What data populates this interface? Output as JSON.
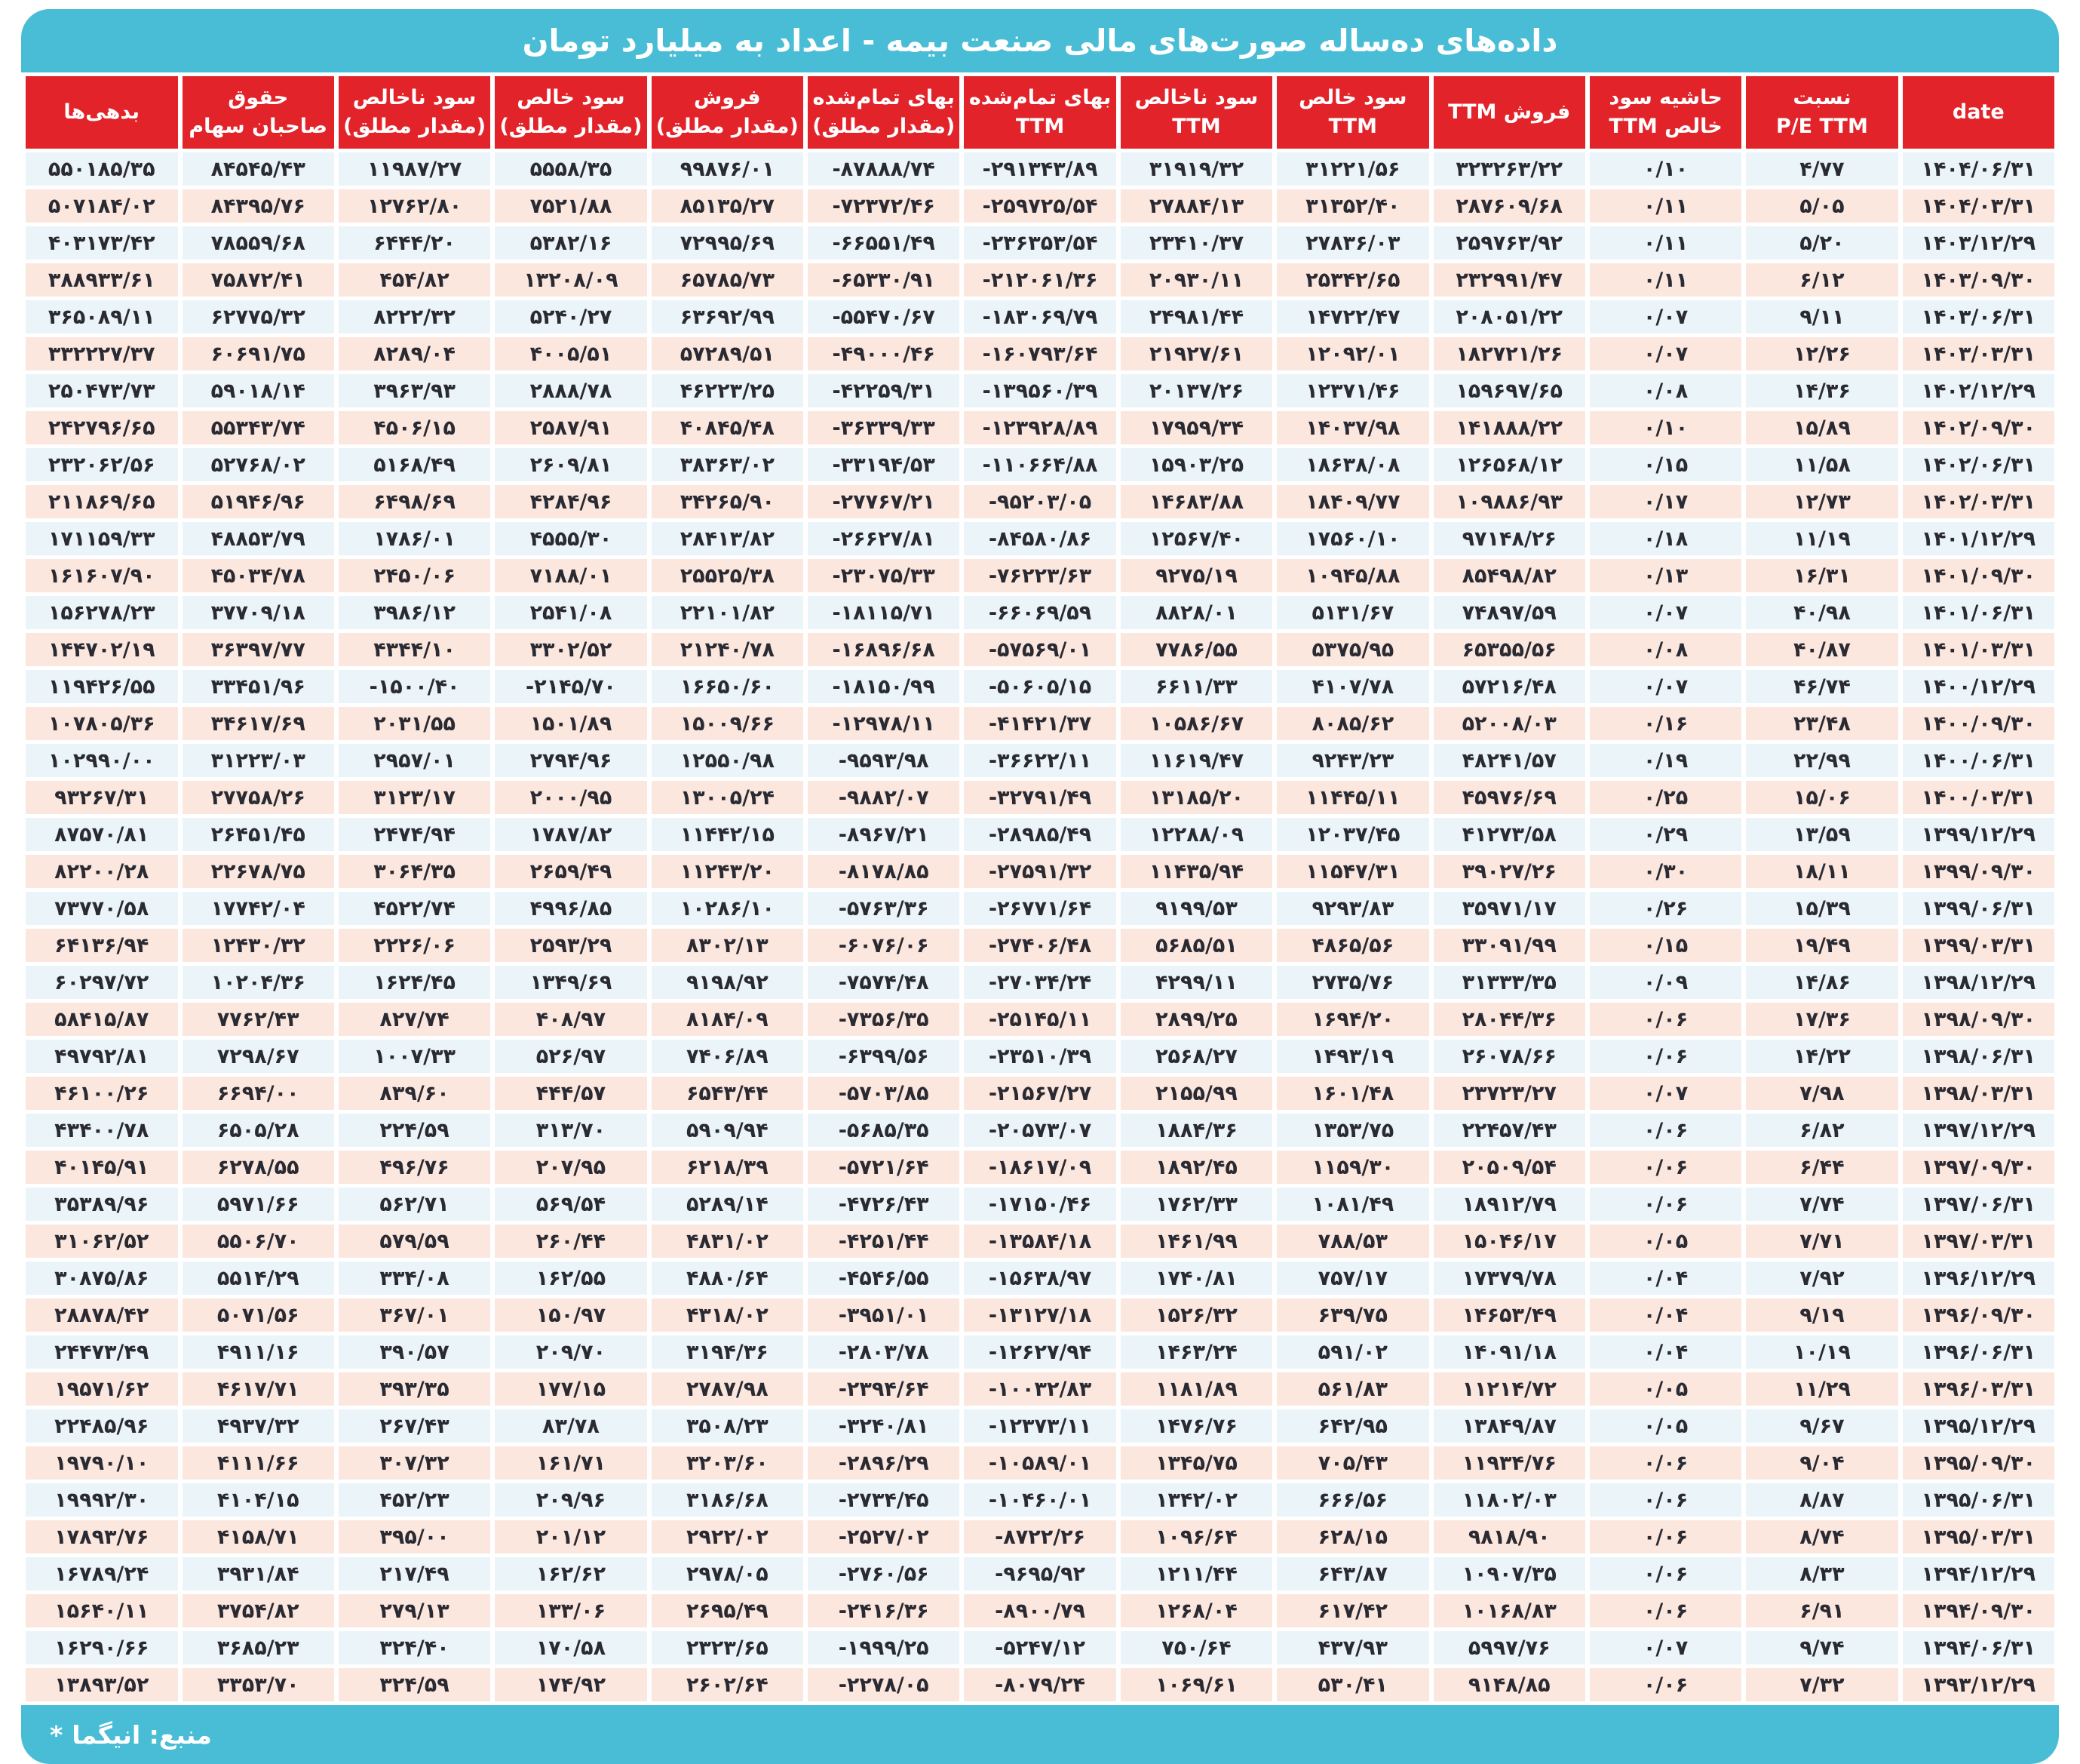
{
  "title": "داده‌های ده‌ساله صورت‌های مالی صنعت بیمه - اعداد به میلیارد تومان",
  "footer": {
    "footnote_star": "*",
    "source_note": "منبع: انیگما"
  },
  "colors": {
    "accent_cyan": "#49BDD5",
    "header_red": "#E3232A",
    "row_blue": "#EBF4F8",
    "row_peach": "#FBE7DE",
    "text_dark": "#2A2A33",
    "header_text": "#FFFFFF"
  },
  "chart_data": {
    "type": "table",
    "title": "داده‌های ده‌ساله صورت‌های مالی صنعت بیمه - اعداد به میلیارد تومان",
    "unit_note": "اعداد به میلیارد تومان",
    "layout": "rtl, first column (date) rendered rightmost, alternating row stripes",
    "columns": [
      [
        "date"
      ],
      [
        "نسبت",
        "P/E  TTM"
      ],
      [
        "حاشیه سود",
        "خالص TTM"
      ],
      [
        "فروش TTM"
      ],
      [
        "سود خالص",
        "TTM"
      ],
      [
        "سود ناخالص",
        "TTM"
      ],
      [
        "بهای تمام‌شده",
        "TTM"
      ],
      [
        "بهای تمام‌شده",
        "(مقدار مطلق)"
      ],
      [
        "فروش",
        "(مقدار مطلق)"
      ],
      [
        "سود خالص",
        "(مقدار مطلق)"
      ],
      [
        "سود ناخالص",
        "(مقدار مطلق)"
      ],
      [
        "حقوق",
        "صاحبان سهام"
      ],
      [
        "بدهی‌ها"
      ]
    ],
    "rows": [
      [
        "۱۴۰۴/۰۶/۳۱",
        "۴/۷۷",
        "۰/۱۰",
        "۳۲۳۲۶۳/۲۲",
        "۳۱۲۲۱/۵۶",
        "۳۱۹۱۹/۳۲",
        "-۲۹۱۳۴۳/۸۹",
        "-۸۷۸۸۸/۷۴",
        "۹۹۸۷۶/۰۱",
        "۵۵۵۸/۳۵",
        "۱۱۹۸۷/۲۷",
        "۸۴۵۴۵/۴۳",
        "۵۵۰۱۸۵/۳۵"
      ],
      [
        "۱۴۰۴/۰۳/۳۱",
        "۵/۰۵",
        "۰/۱۱",
        "۲۸۷۶۰۹/۶۸",
        "۳۱۳۵۲/۴۰",
        "۲۷۸۸۴/۱۳",
        "-۲۵۹۷۲۵/۵۴",
        "-۷۲۳۷۲/۴۶",
        "۸۵۱۳۵/۲۷",
        "۷۵۲۱/۸۸",
        "۱۲۷۶۲/۸۰",
        "۸۴۳۹۵/۷۶",
        "۵۰۷۱۸۴/۰۲"
      ],
      [
        "۱۴۰۳/۱۲/۲۹",
        "۵/۲۰",
        "۰/۱۱",
        "۲۵۹۷۶۳/۹۲",
        "۲۷۸۳۶/۰۳",
        "۲۳۴۱۰/۳۷",
        "-۲۳۶۳۵۳/۵۴",
        "-۶۶۵۵۱/۴۹",
        "۷۲۹۹۵/۶۹",
        "۵۳۸۲/۱۶",
        "۶۴۴۴/۲۰",
        "۷۸۵۵۹/۶۸",
        "۴۰۳۱۷۳/۴۲"
      ],
      [
        "۱۴۰۳/۰۹/۳۰",
        "۶/۱۲",
        "۰/۱۱",
        "۲۳۲۹۹۱/۴۷",
        "۲۵۳۴۲/۶۵",
        "۲۰۹۳۰/۱۱",
        "-۲۱۲۰۶۱/۳۶",
        "-۶۵۳۳۰/۹۱",
        "۶۵۷۸۵/۷۳",
        "۱۳۲۰۸/۰۹",
        "۴۵۴/۸۲",
        "۷۵۸۷۲/۴۱",
        "۳۸۸۹۳۳/۶۱"
      ],
      [
        "۱۴۰۳/۰۶/۳۱",
        "۹/۱۱",
        "۰/۰۷",
        "۲۰۸۰۵۱/۲۲",
        "۱۴۷۲۲/۴۷",
        "۲۴۹۸۱/۴۴",
        "-۱۸۳۰۶۹/۷۹",
        "-۵۵۴۷۰/۶۷",
        "۶۳۶۹۲/۹۹",
        "۵۲۴۰/۲۷",
        "۸۲۲۲/۳۲",
        "۶۲۷۷۵/۳۲",
        "۳۶۵۰۸۹/۱۱"
      ],
      [
        "۱۴۰۳/۰۳/۳۱",
        "۱۲/۲۶",
        "۰/۰۷",
        "۱۸۲۷۲۱/۲۶",
        "۱۲۰۹۲/۰۱",
        "۲۱۹۲۷/۶۱",
        "-۱۶۰۷۹۳/۶۴",
        "-۴۹۰۰۰/۴۶",
        "۵۷۲۸۹/۵۱",
        "۴۰۰۵/۵۱",
        "۸۲۸۹/۰۴",
        "۶۰۶۹۱/۷۵",
        "۳۳۲۲۲۷/۳۷"
      ],
      [
        "۱۴۰۲/۱۲/۲۹",
        "۱۴/۳۶",
        "۰/۰۸",
        "۱۵۹۶۹۷/۶۵",
        "۱۲۳۷۱/۴۶",
        "۲۰۱۳۷/۲۶",
        "-۱۳۹۵۶۰/۳۹",
        "-۴۲۲۵۹/۳۱",
        "۴۶۲۲۳/۲۵",
        "۲۸۸۸/۷۸",
        "۳۹۶۳/۹۳",
        "۵۹۰۱۸/۱۴",
        "۲۵۰۴۷۳/۷۳"
      ],
      [
        "۱۴۰۲/۰۹/۳۰",
        "۱۵/۸۹",
        "۰/۱۰",
        "۱۴۱۸۸۸/۲۲",
        "۱۴۰۳۷/۹۸",
        "۱۷۹۵۹/۳۴",
        "-۱۲۳۹۲۸/۸۹",
        "-۳۶۳۳۹/۳۳",
        "۴۰۸۴۵/۴۸",
        "۲۵۸۷/۹۱",
        "۴۵۰۶/۱۵",
        "۵۵۳۴۳/۷۴",
        "۲۴۲۷۹۶/۶۵"
      ],
      [
        "۱۴۰۲/۰۶/۳۱",
        "۱۱/۵۸",
        "۰/۱۵",
        "۱۲۶۵۶۸/۱۲",
        "۱۸۶۳۸/۰۸",
        "۱۵۹۰۳/۲۵",
        "-۱۱۰۶۶۴/۸۸",
        "-۳۳۱۹۴/۵۳",
        "۳۸۳۶۳/۰۲",
        "۲۶۰۹/۸۱",
        "۵۱۶۸/۴۹",
        "۵۲۷۶۸/۰۲",
        "۲۳۲۰۶۲/۵۶"
      ],
      [
        "۱۴۰۲/۰۳/۳۱",
        "۱۲/۷۳",
        "۰/۱۷",
        "۱۰۹۸۸۶/۹۳",
        "۱۸۴۰۹/۷۷",
        "۱۴۶۸۳/۸۸",
        "-۹۵۲۰۳/۰۵",
        "-۲۷۷۶۷/۲۱",
        "۳۴۲۶۵/۹۰",
        "۴۲۸۴/۹۶",
        "۶۴۹۸/۶۹",
        "۵۱۹۴۶/۹۶",
        "۲۱۱۸۶۹/۶۵"
      ],
      [
        "۱۴۰۱/۱۲/۲۹",
        "۱۱/۱۹",
        "۰/۱۸",
        "۹۷۱۴۸/۲۶",
        "۱۷۵۶۰/۱۰",
        "۱۲۵۶۷/۴۰",
        "-۸۴۵۸۰/۸۶",
        "-۲۶۶۲۷/۸۱",
        "۲۸۴۱۳/۸۲",
        "۴۵۵۵/۳۰",
        "۱۷۸۶/۰۱",
        "۴۸۸۵۳/۷۹",
        "۱۷۱۱۵۹/۳۳"
      ],
      [
        "۱۴۰۱/۰۹/۳۰",
        "۱۶/۳۱",
        "۰/۱۳",
        "۸۵۴۹۸/۸۲",
        "۱۰۹۴۵/۸۸",
        "۹۲۷۵/۱۹",
        "-۷۶۲۲۳/۶۳",
        "-۲۳۰۷۵/۳۳",
        "۲۵۵۲۵/۳۸",
        "۷۱۸۸/۰۱",
        "۲۴۵۰/۰۶",
        "۴۵۰۳۴/۷۸",
        "۱۶۱۶۰۷/۹۰"
      ],
      [
        "۱۴۰۱/۰۶/۳۱",
        "۴۰/۹۸",
        "۰/۰۷",
        "۷۴۸۹۷/۵۹",
        "۵۱۳۱/۶۷",
        "۸۸۲۸/۰۱",
        "-۶۶۰۶۹/۵۹",
        "-۱۸۱۱۵/۷۱",
        "۲۲۱۰۱/۸۲",
        "۲۵۴۱/۰۸",
        "۳۹۸۶/۱۲",
        "۳۷۷۰۹/۱۸",
        "۱۵۶۲۷۸/۲۳"
      ],
      [
        "۱۴۰۱/۰۳/۳۱",
        "۴۰/۸۷",
        "۰/۰۸",
        "۶۵۳۵۵/۵۶",
        "۵۳۷۵/۹۵",
        "۷۷۸۶/۵۵",
        "-۵۷۵۶۹/۰۱",
        "-۱۶۸۹۶/۶۸",
        "۲۱۲۴۰/۷۸",
        "۳۳۰۲/۵۲",
        "۴۳۴۴/۱۰",
        "۳۶۳۹۷/۷۷",
        "۱۴۴۷۰۲/۱۹"
      ],
      [
        "۱۴۰۰/۱۲/۲۹",
        "۴۶/۷۴",
        "۰/۰۷",
        "۵۷۲۱۶/۴۸",
        "۴۱۰۷/۷۸",
        "۶۶۱۱/۳۳",
        "-۵۰۶۰۵/۱۵",
        "-۱۸۱۵۰/۹۹",
        "۱۶۶۵۰/۶۰",
        "-۲۱۴۵/۷۰",
        "-۱۵۰۰/۴۰",
        "۳۳۴۵۱/۹۶",
        "۱۱۹۴۲۶/۵۵"
      ],
      [
        "۱۴۰۰/۰۹/۳۰",
        "۲۳/۴۸",
        "۰/۱۶",
        "۵۲۰۰۸/۰۳",
        "۸۰۸۵/۶۲",
        "۱۰۵۸۶/۶۷",
        "-۴۱۴۲۱/۳۷",
        "-۱۲۹۷۸/۱۱",
        "۱۵۰۰۹/۶۶",
        "۱۵۰۱/۸۹",
        "۲۰۳۱/۵۵",
        "۳۴۶۱۷/۶۹",
        "۱۰۷۸۰۵/۳۶"
      ],
      [
        "۱۴۰۰/۰۶/۳۱",
        "۲۲/۹۹",
        "۰/۱۹",
        "۴۸۲۴۱/۵۷",
        "۹۲۴۳/۲۳",
        "۱۱۶۱۹/۴۷",
        "-۳۶۶۲۲/۱۱",
        "-۹۵۹۳/۹۸",
        "۱۲۵۵۰/۹۸",
        "۲۷۹۴/۹۶",
        "۲۹۵۷/۰۱",
        "۳۱۲۲۳/۰۳",
        "۱۰۲۹۹۰/۰۰"
      ],
      [
        "۱۴۰۰/۰۳/۳۱",
        "۱۵/۰۶",
        "۰/۲۵",
        "۴۵۹۷۶/۶۹",
        "۱۱۴۴۵/۱۱",
        "۱۳۱۸۵/۲۰",
        "-۳۲۷۹۱/۴۹",
        "-۹۸۸۲/۰۷",
        "۱۳۰۰۵/۲۴",
        "۲۰۰۰/۹۵",
        "۳۱۲۳/۱۷",
        "۲۷۷۵۸/۲۶",
        "۹۳۲۶۷/۳۱"
      ],
      [
        "۱۳۹۹/۱۲/۲۹",
        "۱۳/۵۹",
        "۰/۲۹",
        "۴۱۲۷۳/۵۸",
        "۱۲۰۳۷/۴۵",
        "۱۲۲۸۸/۰۹",
        "-۲۸۹۸۵/۴۹",
        "-۸۹۶۷/۲۱",
        "۱۱۴۴۲/۱۵",
        "۱۷۸۷/۸۲",
        "۲۴۷۴/۹۴",
        "۲۶۴۵۱/۴۵",
        "۸۷۵۷۰/۸۱"
      ],
      [
        "۱۳۹۹/۰۹/۳۰",
        "۱۸/۱۱",
        "۰/۳۰",
        "۳۹۰۲۷/۲۶",
        "۱۱۵۴۷/۳۱",
        "۱۱۴۳۵/۹۴",
        "-۲۷۵۹۱/۳۲",
        "-۸۱۷۸/۸۵",
        "۱۱۲۴۳/۲۰",
        "۲۶۵۹/۴۹",
        "۳۰۶۴/۳۵",
        "۲۲۶۷۸/۷۵",
        "۸۲۲۰۰/۲۸"
      ],
      [
        "۱۳۹۹/۰۶/۳۱",
        "۱۵/۳۹",
        "۰/۲۶",
        "۳۵۹۷۱/۱۷",
        "۹۲۹۳/۸۳",
        "۹۱۹۹/۵۳",
        "-۲۶۷۷۱/۶۴",
        "-۵۷۶۳/۳۶",
        "۱۰۲۸۶/۱۰",
        "۴۹۹۶/۸۵",
        "۴۵۲۲/۷۴",
        "۱۷۷۴۲/۰۴",
        "۷۳۷۷۰/۵۸"
      ],
      [
        "۱۳۹۹/۰۳/۳۱",
        "۱۹/۴۹",
        "۰/۱۵",
        "۳۳۰۹۱/۹۹",
        "۴۸۶۵/۵۶",
        "۵۶۸۵/۵۱",
        "-۲۷۴۰۶/۴۸",
        "-۶۰۷۶/۰۶",
        "۸۳۰۲/۱۳",
        "۲۵۹۳/۲۹",
        "۲۲۲۶/۰۶",
        "۱۲۴۳۰/۳۲",
        "۶۴۱۳۶/۹۴"
      ],
      [
        "۱۳۹۸/۱۲/۲۹",
        "۱۴/۸۶",
        "۰/۰۹",
        "۳۱۳۳۳/۳۵",
        "۲۷۳۵/۷۶",
        "۴۲۹۹/۱۱",
        "-۲۷۰۳۴/۲۴",
        "-۷۵۷۴/۴۸",
        "۹۱۹۸/۹۲",
        "۱۳۴۹/۶۹",
        "۱۶۲۴/۴۵",
        "۱۰۲۰۴/۳۶",
        "۶۰۲۹۷/۷۲"
      ],
      [
        "۱۳۹۸/۰۹/۳۰",
        "۱۷/۳۶",
        "۰/۰۶",
        "۲۸۰۴۴/۳۶",
        "۱۶۹۴/۲۰",
        "۲۸۹۹/۲۵",
        "-۲۵۱۴۵/۱۱",
        "-۷۳۵۶/۳۵",
        "۸۱۸۴/۰۹",
        "۴۰۸/۹۷",
        "۸۲۷/۷۴",
        "۷۷۶۲/۴۳",
        "۵۸۴۱۵/۸۷"
      ],
      [
        "۱۳۹۸/۰۶/۳۱",
        "۱۴/۲۲",
        "۰/۰۶",
        "۲۶۰۷۸/۶۶",
        "۱۴۹۳/۱۹",
        "۲۵۶۸/۲۷",
        "-۲۳۵۱۰/۳۹",
        "-۶۳۹۹/۵۶",
        "۷۴۰۶/۸۹",
        "۵۲۶/۹۷",
        "۱۰۰۷/۳۳",
        "۷۲۹۸/۶۷",
        "۴۹۷۹۲/۸۱"
      ],
      [
        "۱۳۹۸/۰۳/۳۱",
        "۷/۹۸",
        "۰/۰۷",
        "۲۳۷۲۳/۲۷",
        "۱۶۰۱/۴۸",
        "۲۱۵۵/۹۹",
        "-۲۱۵۶۷/۲۷",
        "-۵۷۰۳/۸۵",
        "۶۵۴۳/۴۴",
        "۴۴۴/۵۷",
        "۸۳۹/۶۰",
        "۶۶۹۴/۰۰",
        "۴۶۱۰۰/۲۶"
      ],
      [
        "۱۳۹۷/۱۲/۲۹",
        "۶/۸۲",
        "۰/۰۶",
        "۲۲۴۵۷/۴۳",
        "۱۳۵۳/۷۵",
        "۱۸۸۴/۳۶",
        "-۲۰۵۷۳/۰۷",
        "-۵۶۸۵/۳۵",
        "۵۹۰۹/۹۴",
        "۳۱۳/۷۰",
        "۲۲۴/۵۹",
        "۶۵۰۵/۲۸",
        "۴۳۴۰۰/۷۸"
      ],
      [
        "۱۳۹۷/۰۹/۳۰",
        "۶/۴۴",
        "۰/۰۶",
        "۲۰۵۰۹/۵۴",
        "۱۱۵۹/۳۰",
        "۱۸۹۲/۴۵",
        "-۱۸۶۱۷/۰۹",
        "-۵۷۲۱/۶۴",
        "۶۲۱۸/۳۹",
        "۲۰۷/۹۵",
        "۴۹۶/۷۶",
        "۶۲۷۸/۵۵",
        "۴۰۱۴۵/۹۱"
      ],
      [
        "۱۳۹۷/۰۶/۳۱",
        "۷/۷۴",
        "۰/۰۶",
        "۱۸۹۱۲/۷۹",
        "۱۰۸۱/۴۹",
        "۱۷۶۲/۳۳",
        "-۱۷۱۵۰/۴۶",
        "-۴۷۲۶/۴۳",
        "۵۲۸۹/۱۴",
        "۵۶۹/۵۴",
        "۵۶۲/۷۱",
        "۵۹۷۱/۶۶",
        "۳۵۳۸۹/۹۶"
      ],
      [
        "۱۳۹۷/۰۳/۳۱",
        "۷/۷۱",
        "۰/۰۵",
        "۱۵۰۴۶/۱۷",
        "۷۸۸/۵۳",
        "۱۴۶۱/۹۹",
        "-۱۳۵۸۴/۱۸",
        "-۴۲۵۱/۴۴",
        "۴۸۳۱/۰۲",
        "۲۶۰/۴۴",
        "۵۷۹/۵۹",
        "۵۵۰۶/۷۰",
        "۳۱۰۶۲/۵۲"
      ],
      [
        "۱۳۹۶/۱۲/۲۹",
        "۷/۹۲",
        "۰/۰۴",
        "۱۷۳۷۹/۷۸",
        "۷۵۷/۱۷",
        "۱۷۴۰/۸۱",
        "-۱۵۶۳۸/۹۷",
        "-۴۵۴۶/۵۵",
        "۴۸۸۰/۶۴",
        "۱۶۲/۵۵",
        "۳۳۴/۰۸",
        "۵۵۱۴/۲۹",
        "۳۰۸۷۵/۸۶"
      ],
      [
        "۱۳۹۶/۰۹/۳۰",
        "۹/۱۹",
        "۰/۰۴",
        "۱۴۶۵۳/۴۹",
        "۶۳۹/۷۵",
        "۱۵۲۶/۳۲",
        "-۱۳۱۲۷/۱۸",
        "-۳۹۵۱/۰۱",
        "۴۳۱۸/۰۲",
        "۱۵۰/۹۷",
        "۳۶۷/۰۱",
        "۵۰۷۱/۵۶",
        "۲۸۸۷۸/۴۲"
      ],
      [
        "۱۳۹۶/۰۶/۳۱",
        "۱۰/۱۹",
        "۰/۰۴",
        "۱۴۰۹۱/۱۸",
        "۵۹۱/۰۲",
        "۱۴۶۳/۲۴",
        "-۱۲۶۲۷/۹۴",
        "-۲۸۰۳/۷۸",
        "۳۱۹۴/۳۶",
        "۲۰۹/۷۰",
        "۳۹۰/۵۷",
        "۴۹۱۱/۱۶",
        "۲۴۴۷۳/۴۹"
      ],
      [
        "۱۳۹۶/۰۳/۳۱",
        "۱۱/۲۹",
        "۰/۰۵",
        "۱۱۲۱۴/۷۲",
        "۵۶۱/۸۳",
        "۱۱۸۱/۸۹",
        "-۱۰۰۳۲/۸۳",
        "-۲۳۹۴/۶۴",
        "۲۷۸۷/۹۸",
        "۱۷۷/۱۵",
        "۳۹۳/۳۵",
        "۴۶۱۷/۷۱",
        "۱۹۵۷۱/۶۲"
      ],
      [
        "۱۳۹۵/۱۲/۲۹",
        "۹/۶۷",
        "۰/۰۵",
        "۱۳۸۴۹/۸۷",
        "۶۴۲/۹۵",
        "۱۴۷۶/۷۶",
        "-۱۲۳۷۳/۱۱",
        "-۳۲۴۰/۸۱",
        "۳۵۰۸/۲۳",
        "۸۳/۷۸",
        "۲۶۷/۴۳",
        "۴۹۳۷/۳۲",
        "۲۲۴۸۵/۹۶"
      ],
      [
        "۱۳۹۵/۰۹/۳۰",
        "۹/۰۴",
        "۰/۰۶",
        "۱۱۹۳۴/۷۶",
        "۷۰۵/۴۳",
        "۱۳۴۵/۷۵",
        "-۱۰۵۸۹/۰۱",
        "-۲۸۹۶/۲۹",
        "۳۲۰۳/۶۰",
        "۱۶۱/۷۱",
        "۳۰۷/۳۲",
        "۴۱۱۱/۶۶",
        "۱۹۷۹۰/۱۰"
      ],
      [
        "۱۳۹۵/۰۶/۳۱",
        "۸/۸۷",
        "۰/۰۶",
        "۱۱۸۰۲/۰۳",
        "۶۶۶/۵۶",
        "۱۳۴۲/۰۲",
        "-۱۰۴۶۰/۰۱",
        "-۲۷۳۴/۴۵",
        "۳۱۸۶/۶۸",
        "۲۰۹/۹۶",
        "۴۵۲/۲۳",
        "۴۱۰۴/۱۵",
        "۱۹۹۹۲/۳۰"
      ],
      [
        "۱۳۹۵/۰۳/۳۱",
        "۸/۷۴",
        "۰/۰۶",
        "۹۸۱۸/۹۰",
        "۶۲۸/۱۵",
        "۱۰۹۶/۶۴",
        "-۸۷۲۲/۲۶",
        "-۲۵۲۷/۰۲",
        "۲۹۲۲/۰۲",
        "۲۰۱/۱۲",
        "۳۹۵/۰۰",
        "۴۱۵۸/۷۱",
        "۱۷۸۹۳/۷۶"
      ],
      [
        "۱۳۹۴/۱۲/۲۹",
        "۸/۳۳",
        "۰/۰۶",
        "۱۰۹۰۷/۳۵",
        "۶۴۳/۸۷",
        "۱۲۱۱/۴۴",
        "-۹۶۹۵/۹۲",
        "-۲۷۶۰/۵۶",
        "۲۹۷۸/۰۵",
        "۱۶۲/۶۲",
        "۲۱۷/۴۹",
        "۳۹۳۱/۸۴",
        "۱۶۷۸۹/۲۴"
      ],
      [
        "۱۳۹۴/۰۹/۳۰",
        "۶/۹۱",
        "۰/۰۶",
        "۱۰۱۶۸/۸۳",
        "۶۱۷/۴۲",
        "۱۲۶۸/۰۴",
        "-۸۹۰۰/۷۹",
        "-۲۴۱۶/۳۶",
        "۲۶۹۵/۴۹",
        "۱۳۳/۰۶",
        "۲۷۹/۱۳",
        "۳۷۵۴/۸۲",
        "۱۵۶۴۰/۱۱"
      ],
      [
        "۱۳۹۴/۰۶/۳۱",
        "۹/۷۴",
        "۰/۰۷",
        "۵۹۹۷/۷۶",
        "۴۳۷/۹۳",
        "۷۵۰/۶۴",
        "-۵۲۴۷/۱۲",
        "-۱۹۹۹/۲۵",
        "۲۳۲۳/۶۵",
        "۱۷۰/۵۸",
        "۳۲۴/۴۰",
        "۳۶۸۵/۲۳",
        "۱۶۲۹۰/۶۶"
      ],
      [
        "۱۳۹۳/۱۲/۲۹",
        "۷/۳۲",
        "۰/۰۶",
        "۹۱۴۸/۸۵",
        "۵۳۰/۴۱",
        "۱۰۶۹/۶۱",
        "-۸۰۷۹/۲۴",
        "-۲۲۷۸/۰۵",
        "۲۶۰۲/۶۴",
        "۱۷۴/۹۲",
        "۳۲۴/۵۹",
        "۳۳۵۳/۷۰",
        "۱۳۸۹۳/۵۲"
      ]
    ]
  }
}
